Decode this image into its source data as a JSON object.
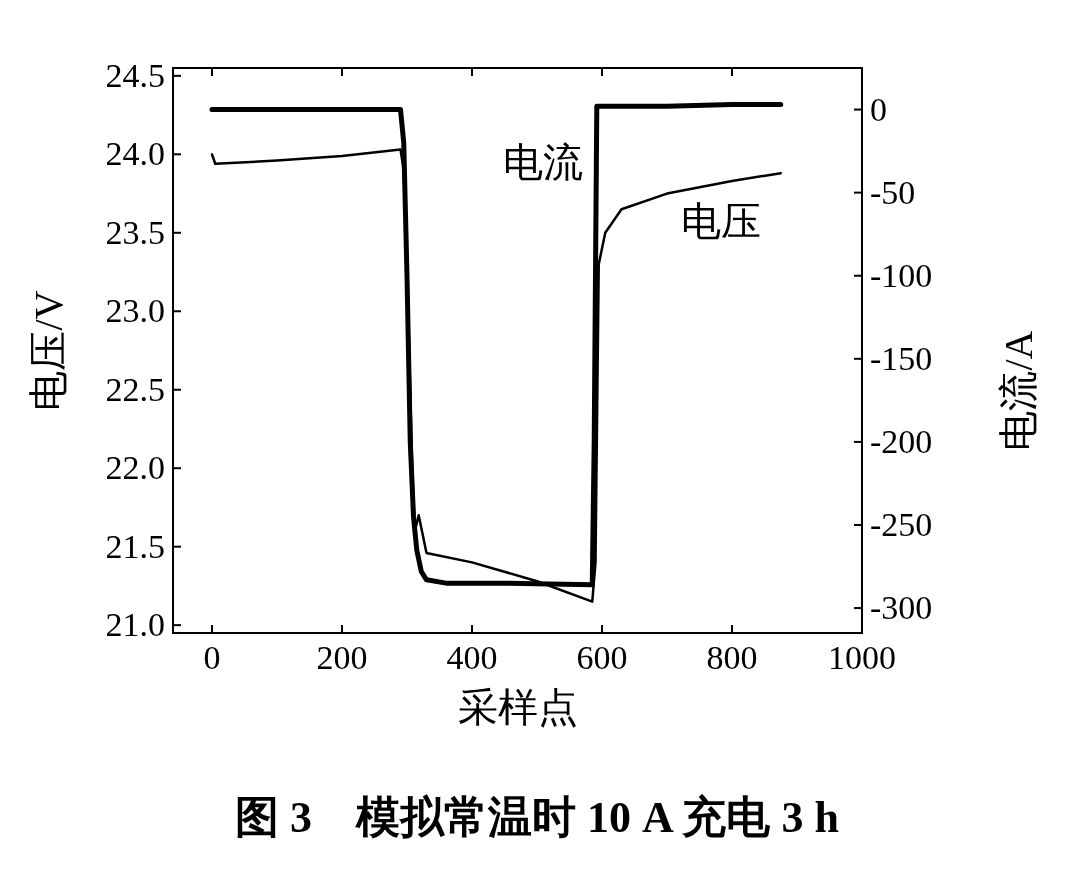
{
  "chart_data": {
    "type": "line",
    "title": "图 3　模拟常温时 10 A 充电 3 h",
    "xlabel": "采样点",
    "ylabel": "电压/V",
    "y2label": "电流/A",
    "xlim": [
      -60,
      1000
    ],
    "xticks": [
      0,
      200,
      400,
      600,
      800,
      1000
    ],
    "ylim": [
      20.95,
      24.55
    ],
    "yticks": [
      {
        "value": 21,
        "label": "21.0"
      },
      21.5,
      {
        "value": 22,
        "label": "22.0"
      },
      22.5,
      {
        "value": 23,
        "label": "23.0"
      },
      23.5,
      {
        "value": 24,
        "label": "24.0"
      },
      24.5
    ],
    "y2lim": [
      -315,
      25
    ],
    "y2ticks": [
      0,
      -50,
      -100,
      -150,
      -200,
      -250,
      -300
    ],
    "grid": false,
    "legend": false,
    "marker": "none",
    "line_style": "solid",
    "series": [
      {
        "name": "电流",
        "color": "#000000",
        "axis": "y2",
        "x": [
          0,
          100,
          200,
          290,
          295,
          300,
          305,
          310,
          315,
          322,
          330,
          360,
          450,
          585,
          588,
          592,
          700,
          800,
          875
        ],
        "values": [
          0,
          0,
          0,
          0,
          -20,
          -100,
          -200,
          -245,
          -265,
          -278,
          -283,
          -285,
          -285,
          -286,
          -200,
          2,
          2,
          3,
          3
        ]
      },
      {
        "name": "电压",
        "color": "#000000",
        "axis": "y",
        "x": [
          0,
          5,
          100,
          200,
          290,
          295,
          300,
          305,
          308,
          312,
          318,
          330,
          400,
          500,
          585,
          590,
          595,
          605,
          630,
          700,
          800,
          875
        ],
        "values": [
          24.0,
          23.94,
          23.96,
          23.99,
          24.03,
          23.9,
          23.3,
          22.5,
          22.0,
          21.6,
          21.7,
          21.46,
          21.4,
          21.28,
          21.15,
          21.4,
          23.3,
          23.5,
          23.65,
          23.75,
          23.83,
          23.88
        ]
      }
    ]
  }
}
